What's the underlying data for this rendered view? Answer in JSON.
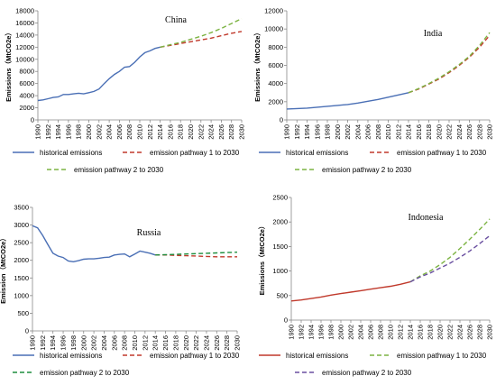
{
  "chart_data": [
    {
      "type": "line",
      "title": "China",
      "ylabel": "Emissions（MtCO2e）",
      "ylim": [
        0,
        18000
      ],
      "yticks": [
        "0",
        "2000",
        "4000",
        "6000",
        "8000",
        "10000",
        "12000",
        "14000",
        "16000",
        "18000"
      ],
      "xticks": [
        "1990",
        "1992",
        "1994",
        "1996",
        "1998",
        "2000",
        "2002",
        "2004",
        "2006",
        "2008",
        "2010",
        "2012",
        "2014",
        "2016",
        "2018",
        "2020",
        "2022",
        "2024",
        "2026",
        "2028",
        "2030"
      ],
      "series": [
        {
          "name": "historical emissions",
          "color": "#4a6fb5",
          "dash": "solid",
          "x": [
            1990,
            1991,
            1992,
            1993,
            1994,
            1995,
            1996,
            1997,
            1998,
            1999,
            2000,
            2001,
            2002,
            2003,
            2004,
            2005,
            2006,
            2007,
            2008,
            2009,
            2010,
            2011,
            2012,
            2013,
            2014
          ],
          "y": [
            3200,
            3300,
            3500,
            3700,
            3800,
            4200,
            4200,
            4300,
            4400,
            4300,
            4500,
            4700,
            5100,
            6000,
            6800,
            7500,
            8000,
            8700,
            8800,
            9500,
            10400,
            11100,
            11400,
            11800,
            12000
          ]
        },
        {
          "name": "emission pathway 1 to 2030",
          "color": "#c0392b",
          "dash": "dashed",
          "x": [
            2014,
            2016,
            2018,
            2020,
            2022,
            2024,
            2026,
            2028,
            2030
          ],
          "y": [
            12000,
            12300,
            12600,
            12900,
            13200,
            13500,
            13900,
            14300,
            14600
          ]
        },
        {
          "name": "emission pathway 2 to 2030",
          "color": "#7cb342",
          "dash": "dashed",
          "x": [
            2014,
            2016,
            2018,
            2020,
            2022,
            2024,
            2026,
            2028,
            2030
          ],
          "y": [
            12000,
            12400,
            12800,
            13300,
            13800,
            14400,
            15100,
            15900,
            16700
          ]
        }
      ],
      "legend": [
        {
          "label": "historical emissions",
          "color": "#4a6fb5",
          "dash": "solid"
        },
        {
          "label": "emission pathway 1 to 2030",
          "color": "#c0392b",
          "dash": "dashed"
        },
        {
          "label": "emission pathway 2 to 2030",
          "color": "#7cb342",
          "dash": "dashed"
        }
      ]
    },
    {
      "type": "line",
      "title": "India",
      "ylabel": "Emissions（MtCO2e）",
      "ylim": [
        0,
        12000
      ],
      "yticks": [
        "0",
        "2000",
        "4000",
        "6000",
        "8000",
        "10000",
        "12000"
      ],
      "xticks": [
        "1990",
        "1992",
        "1994",
        "1996",
        "1998",
        "2000",
        "2002",
        "2004",
        "2006",
        "2008",
        "2010",
        "2012",
        "2014",
        "2016",
        "2018",
        "2020",
        "2022",
        "2024",
        "2026",
        "2028",
        "2030"
      ],
      "series": [
        {
          "name": "historical emissions",
          "color": "#4a6fb5",
          "dash": "solid",
          "x": [
            1990,
            1992,
            1994,
            1996,
            1998,
            2000,
            2002,
            2004,
            2006,
            2008,
            2010,
            2012,
            2014
          ],
          "y": [
            1200,
            1250,
            1300,
            1400,
            1500,
            1600,
            1700,
            1850,
            2050,
            2250,
            2500,
            2750,
            3000
          ]
        },
        {
          "name": "emission pathway 1 to 2030",
          "color": "#c0392b",
          "dash": "dashed",
          "x": [
            2014,
            2016,
            2018,
            2020,
            2022,
            2024,
            2026,
            2028,
            2030
          ],
          "y": [
            3000,
            3400,
            3950,
            4500,
            5200,
            6000,
            6900,
            8000,
            9300
          ]
        },
        {
          "name": "emission pathway 2 to 2030",
          "color": "#7cb342",
          "dash": "dashed",
          "x": [
            2014,
            2016,
            2018,
            2020,
            2022,
            2024,
            2026,
            2028,
            2030
          ],
          "y": [
            3000,
            3450,
            4000,
            4600,
            5300,
            6100,
            7000,
            8200,
            9600
          ]
        }
      ],
      "legend": [
        {
          "label": "historical emissions",
          "color": "#4a6fb5",
          "dash": "solid"
        },
        {
          "label": "emission pathway 1 to 2030",
          "color": "#c0392b",
          "dash": "dashed"
        },
        {
          "label": "emission pathway 2 to 2030",
          "color": "#7cb342",
          "dash": "dashed"
        }
      ]
    },
    {
      "type": "line",
      "title": "Russia",
      "ylabel": "Emission（MtCO2e）",
      "ylim": [
        0,
        3500
      ],
      "yticks": [
        "0",
        "500",
        "1000",
        "1500",
        "2000",
        "2500",
        "3000",
        "3500"
      ],
      "xticks": [
        "1990",
        "1992",
        "1994",
        "1996",
        "1998",
        "2000",
        "2002",
        "2004",
        "2006",
        "2008",
        "2010",
        "2012",
        "2014",
        "2016",
        "2018",
        "2020",
        "2022",
        "2024",
        "2026",
        "2028",
        "2030"
      ],
      "series": [
        {
          "name": "historical emissions",
          "color": "#4a6fb5",
          "dash": "solid",
          "x": [
            1990,
            1991,
            1992,
            1993,
            1994,
            1995,
            1996,
            1997,
            1998,
            1999,
            2000,
            2001,
            2002,
            2003,
            2004,
            2005,
            2006,
            2007,
            2008,
            2009,
            2010,
            2011,
            2012,
            2013,
            2014
          ],
          "y": [
            2980,
            2920,
            2700,
            2450,
            2200,
            2120,
            2080,
            1980,
            1960,
            1990,
            2030,
            2040,
            2040,
            2060,
            2080,
            2090,
            2150,
            2170,
            2180,
            2100,
            2180,
            2260,
            2230,
            2200,
            2150
          ]
        },
        {
          "name": "emission pathway 1 to 2030",
          "color": "#c0392b",
          "dash": "dashed",
          "x": [
            2014,
            2016,
            2018,
            2020,
            2022,
            2024,
            2026,
            2028,
            2030
          ],
          "y": [
            2150,
            2150,
            2140,
            2130,
            2120,
            2110,
            2100,
            2100,
            2100
          ]
        },
        {
          "name": "emission pathway 2 to 2030",
          "color": "#1e8e3e",
          "dash": "dashed",
          "x": [
            2014,
            2016,
            2018,
            2020,
            2022,
            2024,
            2026,
            2028,
            2030
          ],
          "y": [
            2150,
            2160,
            2170,
            2180,
            2190,
            2200,
            2210,
            2220,
            2230
          ]
        }
      ],
      "legend": [
        {
          "label": "historical emissions",
          "color": "#4a6fb5",
          "dash": "solid"
        },
        {
          "label": "emission pathway 1 to 2030",
          "color": "#c0392b",
          "dash": "dashed"
        },
        {
          "label": "emission pathway 2 to 2030",
          "color": "#1e8e3e",
          "dash": "dashed"
        }
      ]
    },
    {
      "type": "line",
      "title": "Indonesia",
      "ylabel": "Emissions（MtCO2e）",
      "ylim": [
        0,
        2500
      ],
      "yticks": [
        "0",
        "500",
        "1000",
        "1500",
        "2000",
        "2500"
      ],
      "xticks": [
        "1990",
        "1992",
        "1994",
        "1996",
        "1998",
        "2000",
        "2002",
        "2004",
        "2006",
        "2008",
        "2010",
        "2012",
        "2014",
        "2016",
        "2018",
        "2020",
        "2022",
        "2024",
        "2026",
        "2028",
        "2030"
      ],
      "series": [
        {
          "name": "historical emissions",
          "color": "#c0392b",
          "dash": "solid",
          "x": [
            1990,
            1992,
            1994,
            1996,
            1998,
            2000,
            2002,
            2004,
            2006,
            2008,
            2010,
            2012,
            2014
          ],
          "y": [
            390,
            410,
            440,
            470,
            510,
            540,
            570,
            600,
            630,
            660,
            690,
            730,
            780
          ]
        },
        {
          "name": "emission pathway 1 to 2030",
          "color": "#7cb342",
          "dash": "dashed",
          "x": [
            2014,
            2016,
            2018,
            2020,
            2022,
            2024,
            2026,
            2028,
            2030
          ],
          "y": [
            780,
            900,
            1000,
            1130,
            1280,
            1460,
            1650,
            1850,
            2060
          ]
        },
        {
          "name": "emission pathway 2 to 2030",
          "color": "#6a4fa0",
          "dash": "dashed",
          "x": [
            2014,
            2016,
            2018,
            2020,
            2022,
            2024,
            2026,
            2028,
            2030
          ],
          "y": [
            780,
            880,
            960,
            1060,
            1160,
            1280,
            1410,
            1560,
            1720
          ]
        }
      ],
      "legend": [
        {
          "label": "historical emissions",
          "color": "#c0392b",
          "dash": "solid"
        },
        {
          "label": "emission pathway 1 to 2030",
          "color": "#7cb342",
          "dash": "dashed"
        },
        {
          "label": "emission pathway 2 to 2030",
          "color": "#6a4fa0",
          "dash": "dashed"
        }
      ]
    }
  ]
}
